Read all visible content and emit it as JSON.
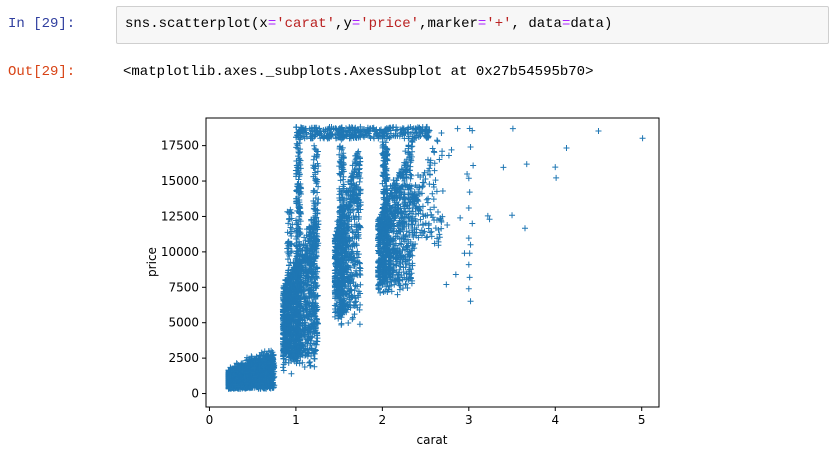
{
  "cell": {
    "in_prompt": "In [29]:",
    "code": {
      "func": "sns.scatterplot(x",
      "eq1": "=",
      "s_carat": "'carat'",
      "c1": ",y",
      "eq2": "=",
      "s_price": "'price'",
      "c2": ",marker",
      "eq3": "=",
      "s_plus": "'+'",
      "c3": ", data",
      "eq4": "=",
      "tail": "data)"
    },
    "out_prompt": "Out[29]:",
    "output_repr": "<matplotlib.axes._subplots.AxesSubplot at 0x27b54595b70>"
  },
  "colors": {
    "marker": "#1f77b4",
    "in_prompt": "#303f9f",
    "out_prompt": "#d84315"
  },
  "chart_data": {
    "type": "scatter",
    "marker": "+",
    "xlabel": "carat",
    "ylabel": "price",
    "xlim": [
      -0.04,
      5.2
    ],
    "ylim": [
      -950,
      19450
    ],
    "xticks": [
      0,
      1,
      2,
      3,
      4,
      5
    ],
    "yticks": [
      0,
      2500,
      5000,
      7500,
      10000,
      12500,
      15000,
      17500
    ],
    "sparse_points": [
      [
        5.01,
        18018
      ],
      [
        4.5,
        18531
      ],
      [
        4.13,
        17329
      ],
      [
        4.01,
        15223
      ],
      [
        4.0,
        15984
      ],
      [
        3.67,
        16193
      ],
      [
        3.51,
        18701
      ],
      [
        3.5,
        12587
      ],
      [
        3.65,
        11668
      ],
      [
        3.4,
        15964
      ],
      [
        3.22,
        12545
      ],
      [
        3.24,
        12300
      ],
      [
        3.04,
        18559
      ],
      [
        3.01,
        18710
      ],
      [
        3.02,
        17400
      ],
      [
        3.05,
        16100
      ],
      [
        3.0,
        15200
      ],
      [
        3.01,
        14220
      ],
      [
        3.0,
        13100
      ],
      [
        3.04,
        12000
      ],
      [
        3.0,
        10970
      ],
      [
        3.02,
        10500
      ],
      [
        3.01,
        9900
      ],
      [
        3.0,
        9100
      ],
      [
        3.01,
        8200
      ],
      [
        3.0,
        7400
      ],
      [
        3.02,
        6512
      ],
      [
        2.95,
        9900
      ],
      [
        2.9,
        12400
      ],
      [
        2.98,
        15500
      ],
      [
        2.8,
        17200
      ],
      [
        2.75,
        11900
      ],
      [
        2.85,
        8400
      ],
      [
        2.7,
        14300
      ],
      [
        2.77,
        16800
      ],
      [
        2.87,
        18700
      ],
      [
        2.74,
        7700
      ]
    ]
  }
}
